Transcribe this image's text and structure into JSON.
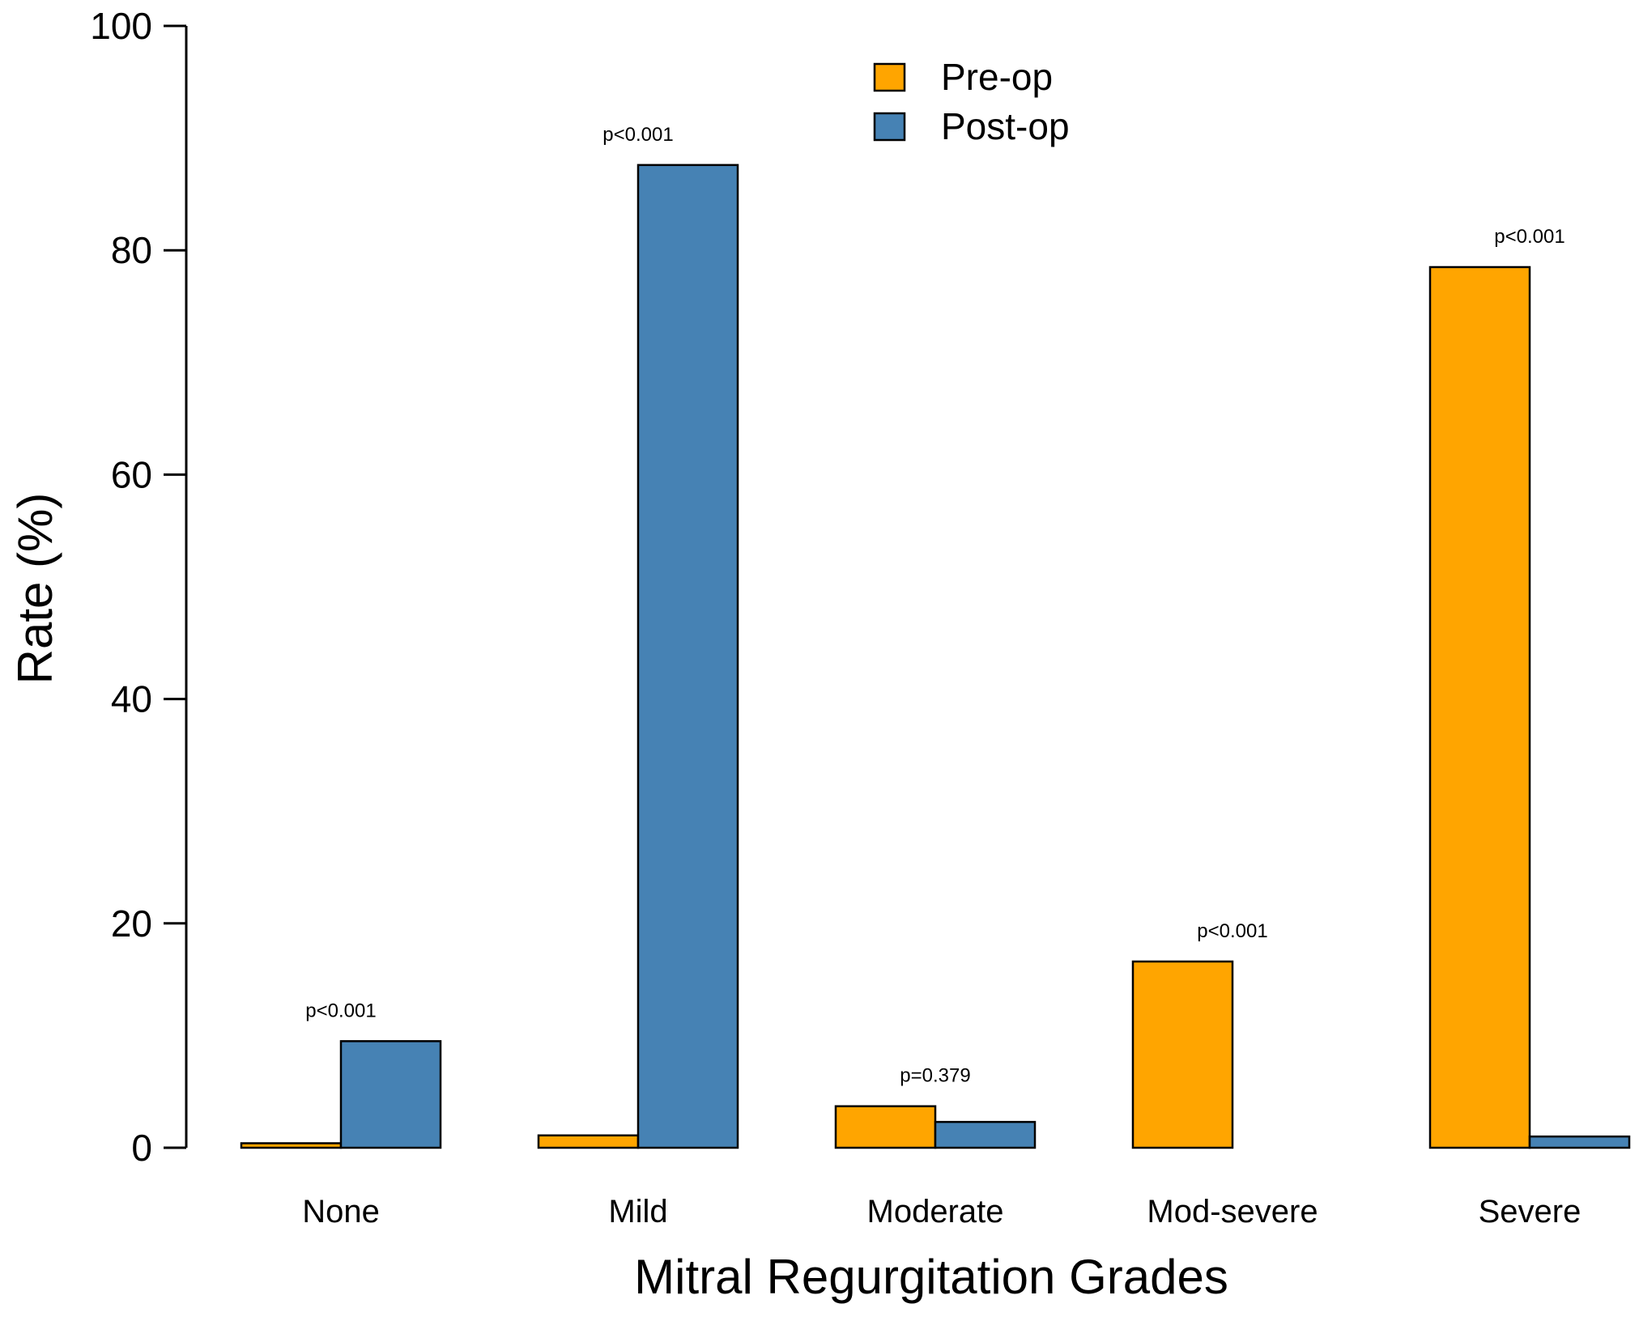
{
  "chart_data": {
    "type": "bar",
    "title": "",
    "xlabel": "Mitral Regurgitation Grades",
    "ylabel": "Rate (%)",
    "ylim": [
      0,
      100
    ],
    "yticks": [
      0,
      20,
      40,
      60,
      80,
      100
    ],
    "categories": [
      "None",
      "Mild",
      "Moderate",
      "Mod-severe",
      "Severe"
    ],
    "series": [
      {
        "name": "Pre-op",
        "color": "#FFA500",
        "values": [
          0.4,
          1.1,
          3.7,
          16.6,
          78.5
        ]
      },
      {
        "name": "Post-op",
        "color": "#4682B4",
        "values": [
          9.5,
          87.6,
          2.3,
          0.0,
          1.0
        ]
      }
    ],
    "p_values": [
      "p<0.001",
      "p<0.001",
      "p=0.379",
      "p<0.001",
      "p<0.001"
    ],
    "legend_position": "top-center",
    "grid": false
  }
}
